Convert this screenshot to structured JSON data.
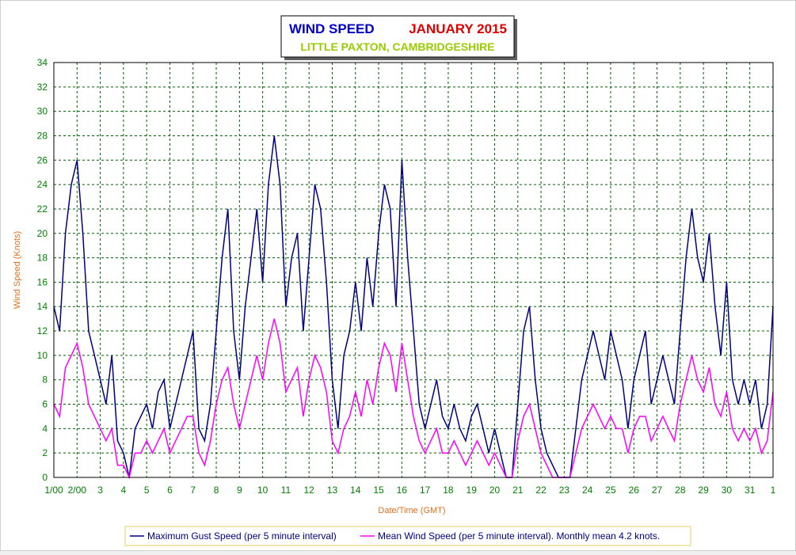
{
  "chart_data": {
    "type": "line",
    "title": "WIND SPEED",
    "period": "JANUARY 2015",
    "subtitle": "LITTLE PAXTON, CAMBRIDGESHIRE",
    "x_label": "Date/Time (GMT)",
    "y_label": "Wind Speed (Knots)",
    "x": [
      1,
      1.25,
      1.5,
      1.75,
      2,
      2.25,
      2.5,
      2.75,
      3,
      3.25,
      3.5,
      3.75,
      4,
      4.25,
      4.5,
      4.75,
      5,
      5.25,
      5.5,
      5.75,
      6,
      6.25,
      6.5,
      6.75,
      7,
      7.25,
      7.5,
      7.75,
      8,
      8.25,
      8.5,
      8.75,
      9,
      9.25,
      9.5,
      9.75,
      10,
      10.25,
      10.5,
      10.75,
      11,
      11.25,
      11.5,
      11.75,
      12,
      12.25,
      12.5,
      12.75,
      13,
      13.25,
      13.5,
      13.75,
      14,
      14.25,
      14.5,
      14.75,
      15,
      15.25,
      15.5,
      15.75,
      16,
      16.25,
      16.5,
      16.75,
      17,
      17.25,
      17.5,
      17.75,
      18,
      18.25,
      18.5,
      18.75,
      19,
      19.25,
      19.5,
      19.75,
      20,
      20.25,
      20.5,
      20.75,
      21,
      21.25,
      21.5,
      21.75,
      22,
      22.25,
      22.5,
      22.75,
      23,
      23.25,
      23.5,
      23.75,
      24,
      24.25,
      24.5,
      24.75,
      25,
      25.25,
      25.5,
      25.75,
      26,
      26.25,
      26.5,
      26.75,
      27,
      27.25,
      27.5,
      27.75,
      28,
      28.25,
      28.5,
      28.75,
      29,
      29.25,
      29.5,
      29.75,
      30,
      30.25,
      30.5,
      30.75,
      31,
      31.25,
      31.5,
      31.75,
      32
    ],
    "series": [
      {
        "name": "Maximum Gust Speed (per 5 minute interval)",
        "color": "#000080",
        "values": [
          14,
          12,
          20,
          24,
          26,
          20,
          12,
          10,
          8,
          6,
          10,
          3,
          2,
          0,
          4,
          5,
          6,
          4,
          7,
          8,
          4,
          6,
          8,
          10,
          12,
          4,
          3,
          6,
          12,
          18,
          22,
          12,
          8,
          14,
          18,
          22,
          16,
          24,
          28,
          24,
          14,
          18,
          20,
          12,
          18,
          24,
          22,
          16,
          8,
          4,
          10,
          12,
          16,
          12,
          18,
          14,
          20,
          24,
          22,
          14,
          26,
          18,
          12,
          6,
          4,
          6,
          8,
          5,
          4,
          6,
          4,
          3,
          5,
          6,
          4,
          2,
          4,
          2,
          0,
          0,
          6,
          12,
          14,
          8,
          4,
          2,
          1,
          0,
          0,
          0,
          4,
          8,
          10,
          12,
          10,
          8,
          12,
          10,
          8,
          4,
          8,
          10,
          12,
          6,
          8,
          10,
          8,
          6,
          12,
          18,
          22,
          18,
          16,
          20,
          14,
          10,
          16,
          8,
          6,
          8,
          6,
          8,
          4,
          6,
          14
        ]
      },
      {
        "name": "Mean Wind Speed (per 5 minute interval). Monthly mean 4.2 knots.",
        "color": "#ff00ff",
        "values": [
          6,
          5,
          9,
          10,
          11,
          9,
          6,
          5,
          4,
          3,
          4,
          1,
          1,
          0,
          2,
          2,
          3,
          2,
          3,
          4,
          2,
          3,
          4,
          5,
          5,
          2,
          1,
          3,
          6,
          8,
          9,
          6,
          4,
          6,
          8,
          10,
          8,
          11,
          13,
          11,
          7,
          8,
          9,
          5,
          8,
          10,
          9,
          7,
          3,
          2,
          4,
          5,
          7,
          5,
          8,
          6,
          9,
          11,
          10,
          7,
          11,
          8,
          5,
          3,
          2,
          3,
          4,
          2,
          2,
          3,
          2,
          1,
          2,
          3,
          2,
          1,
          2,
          1,
          0,
          0,
          3,
          5,
          6,
          4,
          2,
          1,
          0,
          0,
          0,
          0,
          2,
          4,
          5,
          6,
          5,
          4,
          5,
          4,
          4,
          2,
          4,
          5,
          5,
          3,
          4,
          5,
          4,
          3,
          6,
          8,
          10,
          8,
          7,
          9,
          6,
          5,
          7,
          4,
          3,
          4,
          3,
          4,
          2,
          3,
          7
        ]
      }
    ],
    "xlim": [
      1,
      32
    ],
    "xticks": [
      {
        "value": 1,
        "label": "1/00"
      },
      {
        "value": 2,
        "label": "2/00"
      },
      3,
      4,
      5,
      6,
      7,
      8,
      9,
      10,
      11,
      12,
      13,
      14,
      15,
      16,
      17,
      18,
      19,
      20,
      21,
      22,
      23,
      24,
      25,
      26,
      27,
      28,
      29,
      30,
      31,
      {
        "value": 32,
        "label": "1"
      }
    ],
    "ylim": [
      0,
      34
    ],
    "yticks": [
      0,
      2,
      4,
      6,
      8,
      10,
      12,
      14,
      16,
      18,
      20,
      22,
      24,
      26,
      28,
      30,
      32,
      34
    ],
    "grid": true
  }
}
